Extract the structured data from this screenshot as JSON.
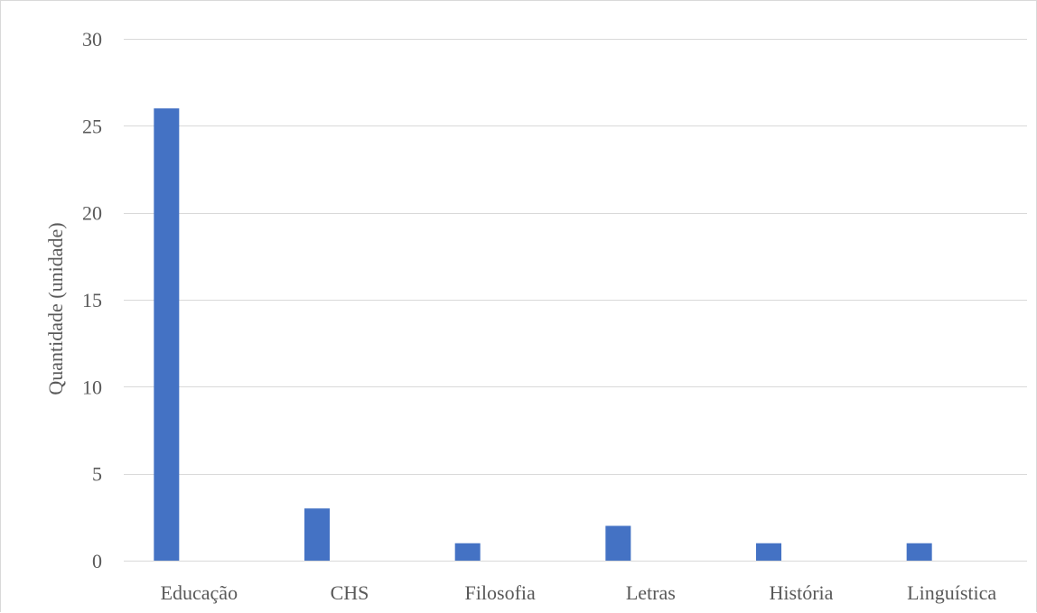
{
  "chart_data": {
    "type": "bar",
    "title": "",
    "xlabel": "",
    "ylabel": "Quantidade (unidade)",
    "categories": [
      "Educação",
      "CHS",
      "Filosofia",
      "Letras",
      "História",
      "Linguística"
    ],
    "values": [
      26,
      3,
      1,
      2,
      1,
      1
    ],
    "ylim": [
      0,
      30
    ],
    "yticks": [
      0,
      5,
      10,
      15,
      20,
      25,
      30
    ],
    "grid": true,
    "legend": "none",
    "colors": {
      "bar": "#4472c4",
      "grid": "#d9d9d9",
      "text": "#595959"
    }
  }
}
